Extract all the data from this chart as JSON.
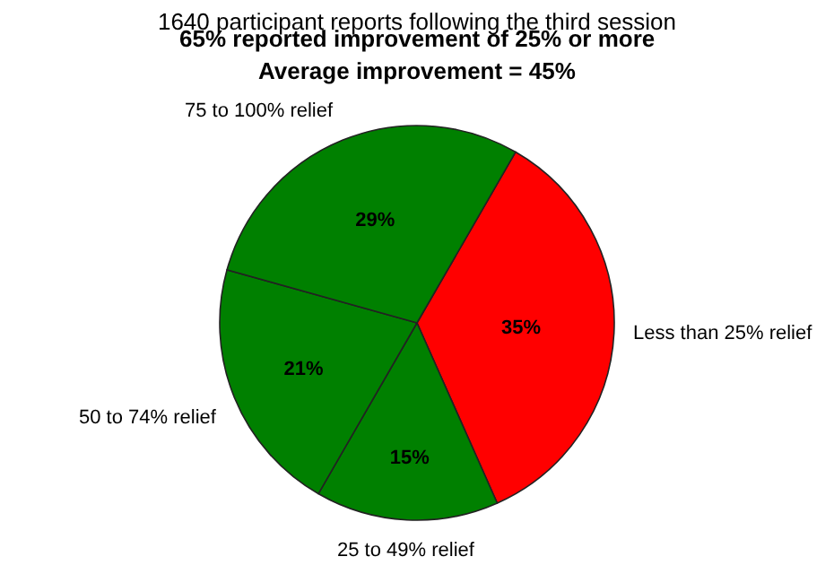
{
  "chart_data": {
    "type": "pie",
    "title": "1640 participant reports following the third session",
    "subtitle": "65% reported improvement of 25% or more",
    "annotations": [
      "Average improvement = 45%"
    ],
    "categories": [
      "Less than 25% relief",
      "25 to 49% relief",
      "50 to 74% relief",
      "75 to 100% relief"
    ],
    "values": [
      35,
      15,
      21,
      29
    ],
    "colors": [
      "#ff0000",
      "#008000",
      "#008000",
      "#008000"
    ],
    "value_labels": [
      "35%",
      "15%",
      "21%",
      "29%"
    ],
    "legend": false
  }
}
